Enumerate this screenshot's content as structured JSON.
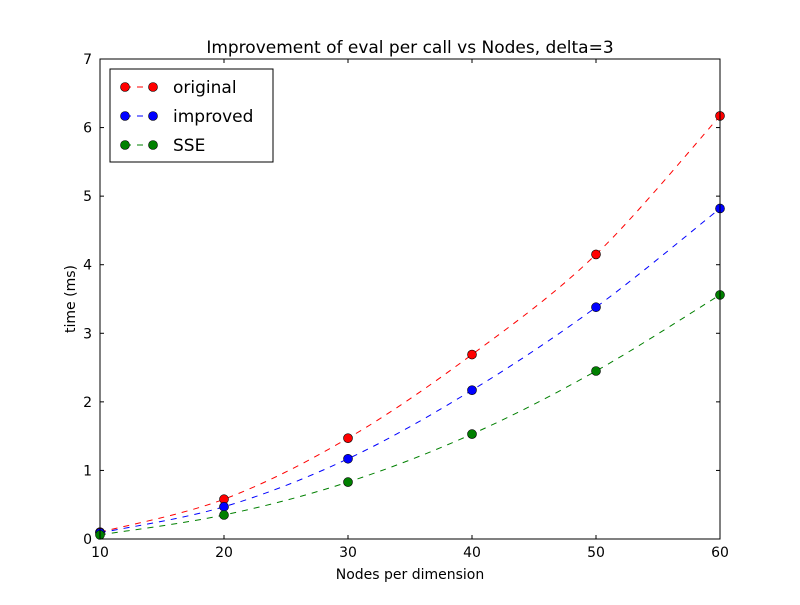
{
  "chart_data": {
    "type": "line",
    "title": "Improvement of eval per call vs Nodes, delta=3",
    "xlabel": "Nodes per dimension",
    "ylabel": "time (ms)",
    "xlim": [
      10,
      60
    ],
    "ylim": [
      0,
      7
    ],
    "xticks": [
      10,
      20,
      30,
      40,
      50,
      60
    ],
    "yticks": [
      0,
      1,
      2,
      3,
      4,
      5,
      6,
      7
    ],
    "x": [
      10,
      20,
      30,
      40,
      50,
      60
    ],
    "grid": false,
    "legend_position": "top-left",
    "series": [
      {
        "name": "original",
        "color": "#ff0000",
        "values": [
          0.1,
          0.58,
          1.47,
          2.69,
          4.15,
          6.17
        ]
      },
      {
        "name": "improved",
        "color": "#0000ff",
        "values": [
          0.09,
          0.47,
          1.17,
          2.17,
          3.38,
          4.82
        ]
      },
      {
        "name": "SSE",
        "color": "#008000",
        "values": [
          0.06,
          0.35,
          0.83,
          1.53,
          2.45,
          3.56
        ]
      }
    ]
  }
}
